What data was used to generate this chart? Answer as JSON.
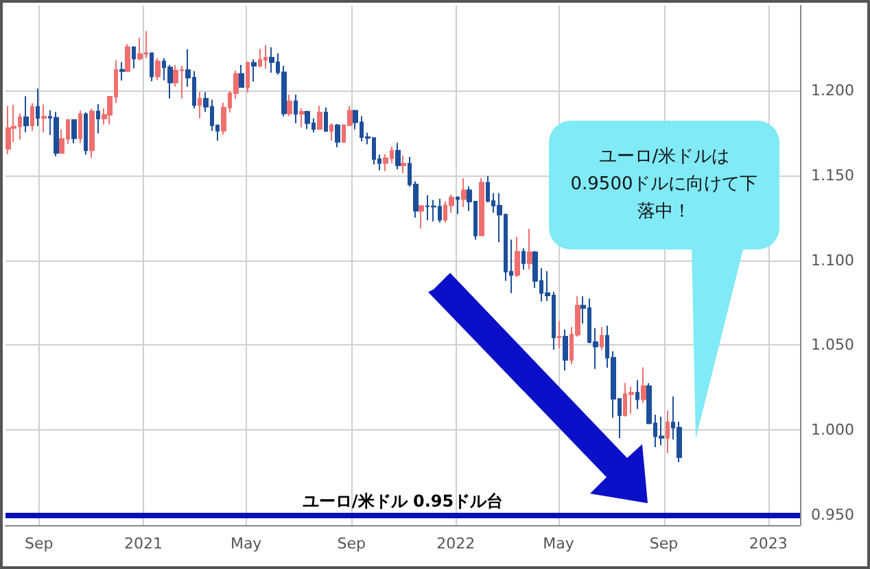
{
  "chart_data": {
    "type": "candlestick",
    "x": [
      "2020-07-27",
      "2020-08-03",
      "2020-08-10",
      "2020-08-17",
      "2020-08-24",
      "2020-08-31",
      "2020-09-07",
      "2020-09-14",
      "2020-09-21",
      "2020-09-28",
      "2020-10-05",
      "2020-10-12",
      "2020-10-19",
      "2020-10-26",
      "2020-11-02",
      "2020-11-09",
      "2020-11-16",
      "2020-11-23",
      "2020-11-30",
      "2020-12-07",
      "2020-12-14",
      "2020-12-21",
      "2020-12-28",
      "2021-01-04",
      "2021-01-11",
      "2021-01-18",
      "2021-01-25",
      "2021-02-01",
      "2021-02-08",
      "2021-02-15",
      "2021-02-22",
      "2021-03-01",
      "2021-03-08",
      "2021-03-15",
      "2021-03-22",
      "2021-03-29",
      "2021-04-05",
      "2021-04-12",
      "2021-04-19",
      "2021-04-26",
      "2021-05-03",
      "2021-05-10",
      "2021-05-17",
      "2021-05-24",
      "2021-05-31",
      "2021-06-07",
      "2021-06-14",
      "2021-06-21",
      "2021-06-28",
      "2021-07-05",
      "2021-07-12",
      "2021-07-19",
      "2021-07-26",
      "2021-08-02",
      "2021-08-09",
      "2021-08-16",
      "2021-08-23",
      "2021-08-30",
      "2021-09-06",
      "2021-09-13",
      "2021-09-20",
      "2021-09-27",
      "2021-10-04",
      "2021-10-11",
      "2021-10-18",
      "2021-10-25",
      "2021-11-01",
      "2021-11-08",
      "2021-11-15",
      "2021-11-22",
      "2021-11-29",
      "2021-12-06",
      "2021-12-13",
      "2021-12-20",
      "2021-12-27",
      "2022-01-03",
      "2022-01-10",
      "2022-01-17",
      "2022-01-24",
      "2022-01-31",
      "2022-02-07",
      "2022-02-14",
      "2022-02-21",
      "2022-02-28",
      "2022-03-07",
      "2022-03-14",
      "2022-03-21",
      "2022-03-28",
      "2022-04-04",
      "2022-04-11",
      "2022-04-18",
      "2022-04-25",
      "2022-05-02",
      "2022-05-09",
      "2022-05-16",
      "2022-05-23",
      "2022-05-30",
      "2022-06-06",
      "2022-06-13",
      "2022-06-20",
      "2022-06-27",
      "2022-07-04",
      "2022-07-11",
      "2022-07-18",
      "2022-07-25",
      "2022-08-01",
      "2022-08-08",
      "2022-08-15",
      "2022-08-22",
      "2022-08-29",
      "2022-09-05",
      "2022-09-12",
      "2022-09-19"
    ],
    "ohlc": [
      [
        1.1655,
        1.1909,
        1.1625,
        1.1778
      ],
      [
        1.1778,
        1.1916,
        1.1696,
        1.1787
      ],
      [
        1.1787,
        1.1865,
        1.1711,
        1.1842
      ],
      [
        1.1842,
        1.1966,
        1.1754,
        1.1794
      ],
      [
        1.1794,
        1.1925,
        1.176,
        1.1904
      ],
      [
        1.1904,
        1.2011,
        1.1789,
        1.1838
      ],
      [
        1.1838,
        1.1917,
        1.1752,
        1.1845
      ],
      [
        1.1845,
        1.1882,
        1.1737,
        1.1839
      ],
      [
        1.1839,
        1.1873,
        1.1612,
        1.1631
      ],
      [
        1.1631,
        1.177,
        1.1627,
        1.1715
      ],
      [
        1.1715,
        1.1831,
        1.1686,
        1.1826
      ],
      [
        1.1826,
        1.183,
        1.1689,
        1.1718
      ],
      [
        1.1718,
        1.1881,
        1.169,
        1.186
      ],
      [
        1.186,
        1.187,
        1.1622,
        1.1647
      ],
      [
        1.1647,
        1.1891,
        1.1603,
        1.1876
      ],
      [
        1.1876,
        1.192,
        1.1746,
        1.1834
      ],
      [
        1.1834,
        1.1894,
        1.18,
        1.1856
      ],
      [
        1.1856,
        1.1965,
        1.18,
        1.1963
      ],
      [
        1.1963,
        1.2177,
        1.1925,
        1.2122
      ],
      [
        1.2122,
        1.2167,
        1.2058,
        1.2113
      ],
      [
        1.2113,
        1.2273,
        1.2108,
        1.2255
      ],
      [
        1.2255,
        1.2259,
        1.213,
        1.2187
      ],
      [
        1.2187,
        1.231,
        1.2177,
        1.2214
      ],
      [
        1.2214,
        1.2349,
        1.219,
        1.2219
      ],
      [
        1.2219,
        1.2223,
        1.2054,
        1.2082
      ],
      [
        1.2082,
        1.219,
        1.2061,
        1.2171
      ],
      [
        1.2171,
        1.219,
        1.2059,
        1.2136
      ],
      [
        1.2136,
        1.215,
        1.1952,
        1.2046
      ],
      [
        1.2046,
        1.215,
        1.2023,
        1.2118
      ],
      [
        1.2118,
        1.2146,
        1.1952,
        1.212
      ],
      [
        1.212,
        1.2243,
        1.2022,
        1.2075
      ],
      [
        1.2075,
        1.2113,
        1.1893,
        1.1914
      ],
      [
        1.1914,
        1.199,
        1.1835,
        1.1951
      ],
      [
        1.1951,
        1.1989,
        1.1873,
        1.1904
      ],
      [
        1.1904,
        1.1945,
        1.1762,
        1.1795
      ],
      [
        1.1795,
        1.1795,
        1.1704,
        1.1762
      ],
      [
        1.1762,
        1.1927,
        1.1739,
        1.1899
      ],
      [
        1.1899,
        1.1995,
        1.1869,
        1.1983
      ],
      [
        1.1983,
        1.2116,
        1.1951,
        1.2097
      ],
      [
        1.2097,
        1.215,
        1.2017,
        1.202
      ],
      [
        1.202,
        1.217,
        1.1986,
        1.2163
      ],
      [
        1.2163,
        1.2183,
        1.2052,
        1.2145
      ],
      [
        1.2145,
        1.2245,
        1.2138,
        1.218
      ],
      [
        1.218,
        1.2266,
        1.2127,
        1.2193
      ],
      [
        1.2193,
        1.2254,
        1.2104,
        1.2166
      ],
      [
        1.2166,
        1.2218,
        1.2093,
        1.2106
      ],
      [
        1.2106,
        1.2145,
        1.1847,
        1.1864
      ],
      [
        1.1864,
        1.1975,
        1.1848,
        1.1936
      ],
      [
        1.1936,
        1.1975,
        1.1807,
        1.1862
      ],
      [
        1.1862,
        1.1895,
        1.1782,
        1.1874
      ],
      [
        1.1874,
        1.188,
        1.1772,
        1.1807
      ],
      [
        1.1807,
        1.1836,
        1.1752,
        1.1772
      ],
      [
        1.1772,
        1.1909,
        1.1771,
        1.187
      ],
      [
        1.187,
        1.19,
        1.1756,
        1.1761
      ],
      [
        1.1761,
        1.1806,
        1.1705,
        1.1795
      ],
      [
        1.1795,
        1.1803,
        1.1664,
        1.1697
      ],
      [
        1.1697,
        1.1801,
        1.1691,
        1.1795
      ],
      [
        1.1795,
        1.1909,
        1.1791,
        1.188
      ],
      [
        1.188,
        1.1885,
        1.177,
        1.1812
      ],
      [
        1.1812,
        1.1848,
        1.17,
        1.1725
      ],
      [
        1.1725,
        1.1751,
        1.1683,
        1.172
      ],
      [
        1.172,
        1.172,
        1.1563,
        1.1596
      ],
      [
        1.1596,
        1.1622,
        1.1529,
        1.1573
      ],
      [
        1.1573,
        1.1624,
        1.1524,
        1.1601
      ],
      [
        1.1601,
        1.1669,
        1.1571,
        1.1645
      ],
      [
        1.1645,
        1.1692,
        1.1535,
        1.1558
      ],
      [
        1.1558,
        1.1617,
        1.1513,
        1.1568
      ],
      [
        1.1568,
        1.1608,
        1.1432,
        1.1446
      ],
      [
        1.1446,
        1.1465,
        1.1251,
        1.1291
      ],
      [
        1.1291,
        1.1325,
        1.1186,
        1.1318
      ],
      [
        1.1318,
        1.1383,
        1.1235,
        1.1317
      ],
      [
        1.1317,
        1.1355,
        1.1228,
        1.1315
      ],
      [
        1.1315,
        1.1362,
        1.1221,
        1.1238
      ],
      [
        1.1238,
        1.1346,
        1.1222,
        1.1323
      ],
      [
        1.1323,
        1.1386,
        1.1279,
        1.137
      ],
      [
        1.137,
        1.1377,
        1.1272,
        1.136
      ],
      [
        1.136,
        1.1483,
        1.1313,
        1.1412
      ],
      [
        1.1412,
        1.1435,
        1.129,
        1.1345
      ],
      [
        1.1345,
        1.1347,
        1.1121,
        1.1146
      ],
      [
        1.1146,
        1.1484,
        1.1142,
        1.1456
      ],
      [
        1.1456,
        1.1495,
        1.134,
        1.1348
      ],
      [
        1.1348,
        1.1395,
        1.128,
        1.1321
      ],
      [
        1.1321,
        1.1395,
        1.1106,
        1.1268
      ],
      [
        1.1268,
        1.1275,
        1.0878,
        1.0933
      ],
      [
        1.0933,
        1.1121,
        1.0806,
        1.0912
      ],
      [
        1.0912,
        1.1138,
        1.09,
        1.105
      ],
      [
        1.105,
        1.107,
        1.0945,
        1.0982
      ],
      [
        1.0982,
        1.1185,
        1.0945,
        1.1047
      ],
      [
        1.1047,
        1.1055,
        1.0837,
        1.0878
      ],
      [
        1.0878,
        1.0953,
        1.0757,
        1.0807
      ],
      [
        1.0807,
        1.0936,
        1.076,
        1.0792
      ],
      [
        1.0792,
        1.0814,
        1.0472,
        1.0545
      ],
      [
        1.0545,
        1.0642,
        1.0483,
        1.055
      ],
      [
        1.055,
        1.0593,
        1.035,
        1.0413
      ],
      [
        1.0413,
        1.0607,
        1.0389,
        1.0561
      ],
      [
        1.0561,
        1.0787,
        1.055,
        1.0733
      ],
      [
        1.0733,
        1.0787,
        1.0627,
        1.0718
      ],
      [
        1.0718,
        1.0774,
        1.0511,
        1.0518
      ],
      [
        1.0518,
        1.0601,
        1.0359,
        1.0492
      ],
      [
        1.0492,
        1.0606,
        1.047,
        1.0555
      ],
      [
        1.0555,
        1.0615,
        1.0366,
        1.0426
      ],
      [
        1.0426,
        1.0463,
        1.0072,
        1.0184
      ],
      [
        1.0184,
        1.0186,
        0.9952,
        1.0087
      ],
      [
        1.0087,
        1.0278,
        1.008,
        1.0211
      ],
      [
        1.0211,
        1.0255,
        1.0096,
        1.022
      ],
      [
        1.022,
        1.0294,
        1.0123,
        1.0181
      ],
      [
        1.0181,
        1.0368,
        1.016,
        1.0258
      ],
      [
        1.0258,
        1.0277,
        1.0034,
        1.0039
      ],
      [
        1.0039,
        1.009,
        0.9899,
        0.9963
      ],
      [
        0.9963,
        1.0079,
        0.991,
        0.9954
      ],
      [
        0.9954,
        1.0114,
        0.9864,
        1.0045
      ],
      [
        1.0045,
        1.0198,
        0.9944,
        1.0014
      ],
      [
        1.0014,
        1.005,
        0.981,
        0.984
      ]
    ],
    "colors": [
      "#ef6f6f",
      "#ef6f6f",
      "#ef6f6f",
      "#1d4f9a",
      "#ef6f6f",
      "#1d4f9a",
      "#ef6f6f",
      "#1d4f9a",
      "#1d4f9a",
      "#ef6f6f",
      "#ef6f6f",
      "#1d4f9a",
      "#ef6f6f",
      "#1d4f9a",
      "#ef6f6f",
      "#1d4f9a",
      "#ef6f6f",
      "#ef6f6f",
      "#ef6f6f",
      "#1d4f9a",
      "#ef6f6f",
      "#1d4f9a",
      "#ef6f6f",
      "#ef6f6f",
      "#1d4f9a",
      "#ef6f6f",
      "#1d4f9a",
      "#1d4f9a",
      "#ef6f6f",
      "#ef6f6f",
      "#1d4f9a",
      "#1d4f9a",
      "#ef6f6f",
      "#1d4f9a",
      "#1d4f9a",
      "#1d4f9a",
      "#ef6f6f",
      "#ef6f6f",
      "#ef6f6f",
      "#1d4f9a",
      "#ef6f6f",
      "#1d4f9a",
      "#ef6f6f",
      "#ef6f6f",
      "#1d4f9a",
      "#1d4f9a",
      "#1d4f9a",
      "#ef6f6f",
      "#1d4f9a",
      "#ef6f6f",
      "#1d4f9a",
      "#1d4f9a",
      "#ef6f6f",
      "#1d4f9a",
      "#ef6f6f",
      "#1d4f9a",
      "#ef6f6f",
      "#ef6f6f",
      "#1d4f9a",
      "#1d4f9a",
      "#1d4f9a",
      "#1d4f9a",
      "#1d4f9a",
      "#ef6f6f",
      "#ef6f6f",
      "#1d4f9a",
      "#ef6f6f",
      "#1d4f9a",
      "#1d4f9a",
      "#ef6f6f",
      "#1d4f9a",
      "#1d4f9a",
      "#1d4f9a",
      "#ef6f6f",
      "#ef6f6f",
      "#1d4f9a",
      "#ef6f6f",
      "#1d4f9a",
      "#1d4f9a",
      "#ef6f6f",
      "#1d4f9a",
      "#1d4f9a",
      "#1d4f9a",
      "#1d4f9a",
      "#1d4f9a",
      "#ef6f6f",
      "#1d4f9a",
      "#ef6f6f",
      "#1d4f9a",
      "#1d4f9a",
      "#1d4f9a",
      "#1d4f9a",
      "#ef6f6f",
      "#1d4f9a",
      "#ef6f6f",
      "#ef6f6f",
      "#1d4f9a",
      "#1d4f9a",
      "#1d4f9a",
      "#ef6f6f",
      "#1d4f9a",
      "#1d4f9a",
      "#1d4f9a",
      "#ef6f6f",
      "#ef6f6f",
      "#1d4f9a",
      "#ef6f6f",
      "#1d4f9a",
      "#1d4f9a",
      "#1d4f9a",
      "#ef6f6f",
      "#1d4f9a",
      "#1d4f9a"
    ],
    "xlim": [
      "2020-07-24",
      "2023-02-07"
    ],
    "xticks": [
      {
        "value": "2020-09-01",
        "label": "Sep"
      },
      {
        "value": "2021-01-01",
        "label": "2021"
      },
      {
        "value": "2021-05-01",
        "label": "May"
      },
      {
        "value": "2021-09-01",
        "label": "Sep"
      },
      {
        "value": "2022-01-01",
        "label": "2022"
      },
      {
        "value": "2022-05-01",
        "label": "May"
      },
      {
        "value": "2022-09-01",
        "label": "Sep"
      },
      {
        "value": "2023-01-01",
        "label": "2023"
      }
    ],
    "ylim": [
      0.944,
      1.25
    ],
    "yticks": [
      {
        "value": 0.95,
        "label": "0.950"
      },
      {
        "value": 1.0,
        "label": "1.000"
      },
      {
        "value": 1.05,
        "label": "1.050"
      },
      {
        "value": 1.1,
        "label": "1.100"
      },
      {
        "value": 1.15,
        "label": "1.150"
      },
      {
        "value": 1.2,
        "label": "1.200"
      }
    ],
    "grid": true,
    "ref_lines": [
      {
        "axis": "y",
        "value": 0.95,
        "label": "ユーロ/米ドル 0.95ドル台",
        "color": "#0a10b8"
      }
    ],
    "annotations": [
      "ユーロ/米ドルは0.9500ドルに向けて下落中！"
    ]
  }
}
